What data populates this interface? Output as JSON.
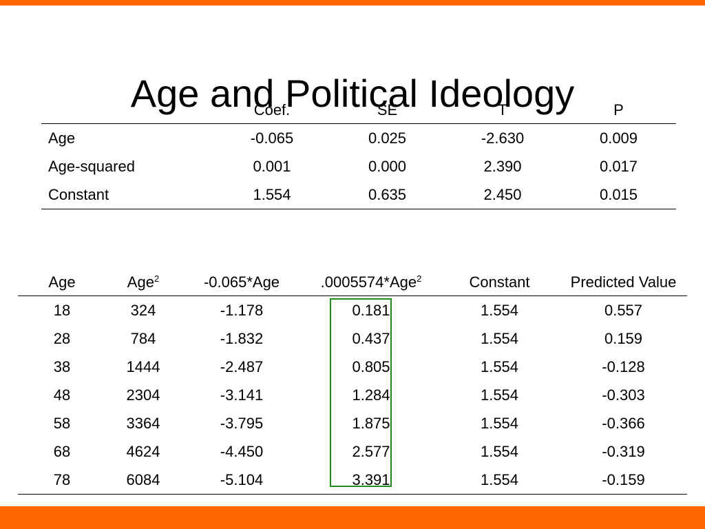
{
  "slide": {
    "title": "Age and Political Ideology",
    "accent_color": "#ff6600",
    "highlight_color": "#1e8a1e"
  },
  "regression_table": {
    "headers": [
      "",
      "Coef.",
      "SE",
      "T",
      "P"
    ],
    "rows": [
      {
        "label": "Age",
        "coef": "-0.065",
        "se": "0.025",
        "t": "-2.630",
        "p": "0.009"
      },
      {
        "label": "Age-squared",
        "coef": "0.001",
        "se": "0.000",
        "t": "2.390",
        "p": "0.017"
      },
      {
        "label": "Constant",
        "coef": "1.554",
        "se": "0.635",
        "t": "2.450",
        "p": "0.015"
      }
    ]
  },
  "prediction_table": {
    "headers": {
      "age": "Age",
      "age_sq": "Age",
      "age_sq_sup": "2",
      "lin_term": "-0.065*Age",
      "quad_term": ".0005574*Age",
      "quad_term_sup": "2",
      "constant": "Constant",
      "predicted": "Predicted Value"
    },
    "rows": [
      {
        "age": "18",
        "age_sq": "324",
        "lin": "-1.178",
        "quad": "0.181",
        "const": "1.554",
        "pred": "0.557"
      },
      {
        "age": "28",
        "age_sq": "784",
        "lin": "-1.832",
        "quad": "0.437",
        "const": "1.554",
        "pred": "0.159"
      },
      {
        "age": "38",
        "age_sq": "1444",
        "lin": "-2.487",
        "quad": "0.805",
        "const": "1.554",
        "pred": "-0.128"
      },
      {
        "age": "48",
        "age_sq": "2304",
        "lin": "-3.141",
        "quad": "1.284",
        "const": "1.554",
        "pred": "-0.303"
      },
      {
        "age": "58",
        "age_sq": "3364",
        "lin": "-3.795",
        "quad": "1.875",
        "const": "1.554",
        "pred": "-0.366"
      },
      {
        "age": "68",
        "age_sq": "4624",
        "lin": "-4.450",
        "quad": "2.577",
        "const": "1.554",
        "pred": "-0.319"
      },
      {
        "age": "78",
        "age_sq": "6084",
        "lin": "-5.104",
        "quad": "3.391",
        "const": "1.554",
        "pred": "-0.159"
      }
    ]
  }
}
